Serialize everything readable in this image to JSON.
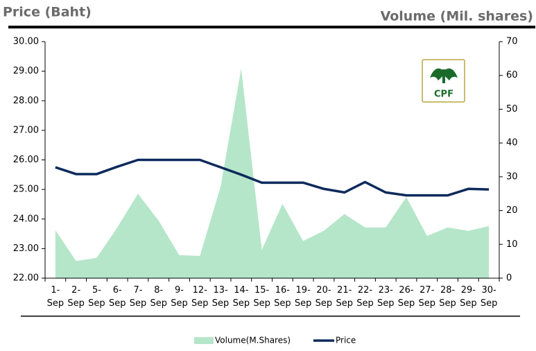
{
  "chart_data": {
    "type": "line",
    "title_left": "Price (Baht)",
    "title_right": "Volume (Mil. shares)",
    "logo_text": "CPF",
    "categories": [
      "1-Sep",
      "2-Sep",
      "5-Sep",
      "6-Sep",
      "7-Sep",
      "8-Sep",
      "9-Sep",
      "12-Sep",
      "13-Sep",
      "14-Sep",
      "15-Sep",
      "16-Sep",
      "19-Sep",
      "20-Sep",
      "21-Sep",
      "22-Sep",
      "23-Sep",
      "26-Sep",
      "27-Sep",
      "28-Sep",
      "29-Sep",
      "30-Sep"
    ],
    "series": [
      {
        "name": "Volume(M.Shares)",
        "type": "area",
        "axis": "y2",
        "color": "#b5e6c9",
        "values": [
          14.2,
          5.1,
          6,
          15,
          25,
          17,
          6.8,
          6.6,
          27,
          62,
          8.4,
          22,
          11,
          14,
          19,
          15,
          15,
          24,
          12.5,
          15,
          14,
          15.4
        ]
      },
      {
        "name": "Price",
        "type": "line",
        "axis": "y",
        "color": "#0d2a5c",
        "values": [
          25.75,
          25.52,
          25.52,
          25.77,
          26.0,
          26.0,
          26.0,
          26.0,
          25.75,
          25.5,
          25.23,
          25.23,
          25.23,
          25.02,
          24.9,
          25.25,
          24.9,
          24.8,
          24.8,
          24.8,
          25.02,
          25.0
        ]
      }
    ],
    "ylim": [
      22,
      30
    ],
    "yticks": [
      {
        "value": 22,
        "label": "22.00"
      },
      {
        "value": 23,
        "label": "23.00"
      },
      {
        "value": 24,
        "label": "24.00"
      },
      {
        "value": 25,
        "label": "25.00"
      },
      {
        "value": 26,
        "label": "26.00"
      },
      {
        "value": 27,
        "label": "27.00"
      },
      {
        "value": 28,
        "label": "28.00"
      },
      {
        "value": 29,
        "label": "29.00"
      },
      {
        "value": 30,
        "label": "30.00"
      }
    ],
    "y2lim": [
      0,
      70
    ],
    "y2ticks": [
      0,
      10,
      20,
      30,
      40,
      50,
      60,
      70
    ],
    "legend": "bottom"
  }
}
